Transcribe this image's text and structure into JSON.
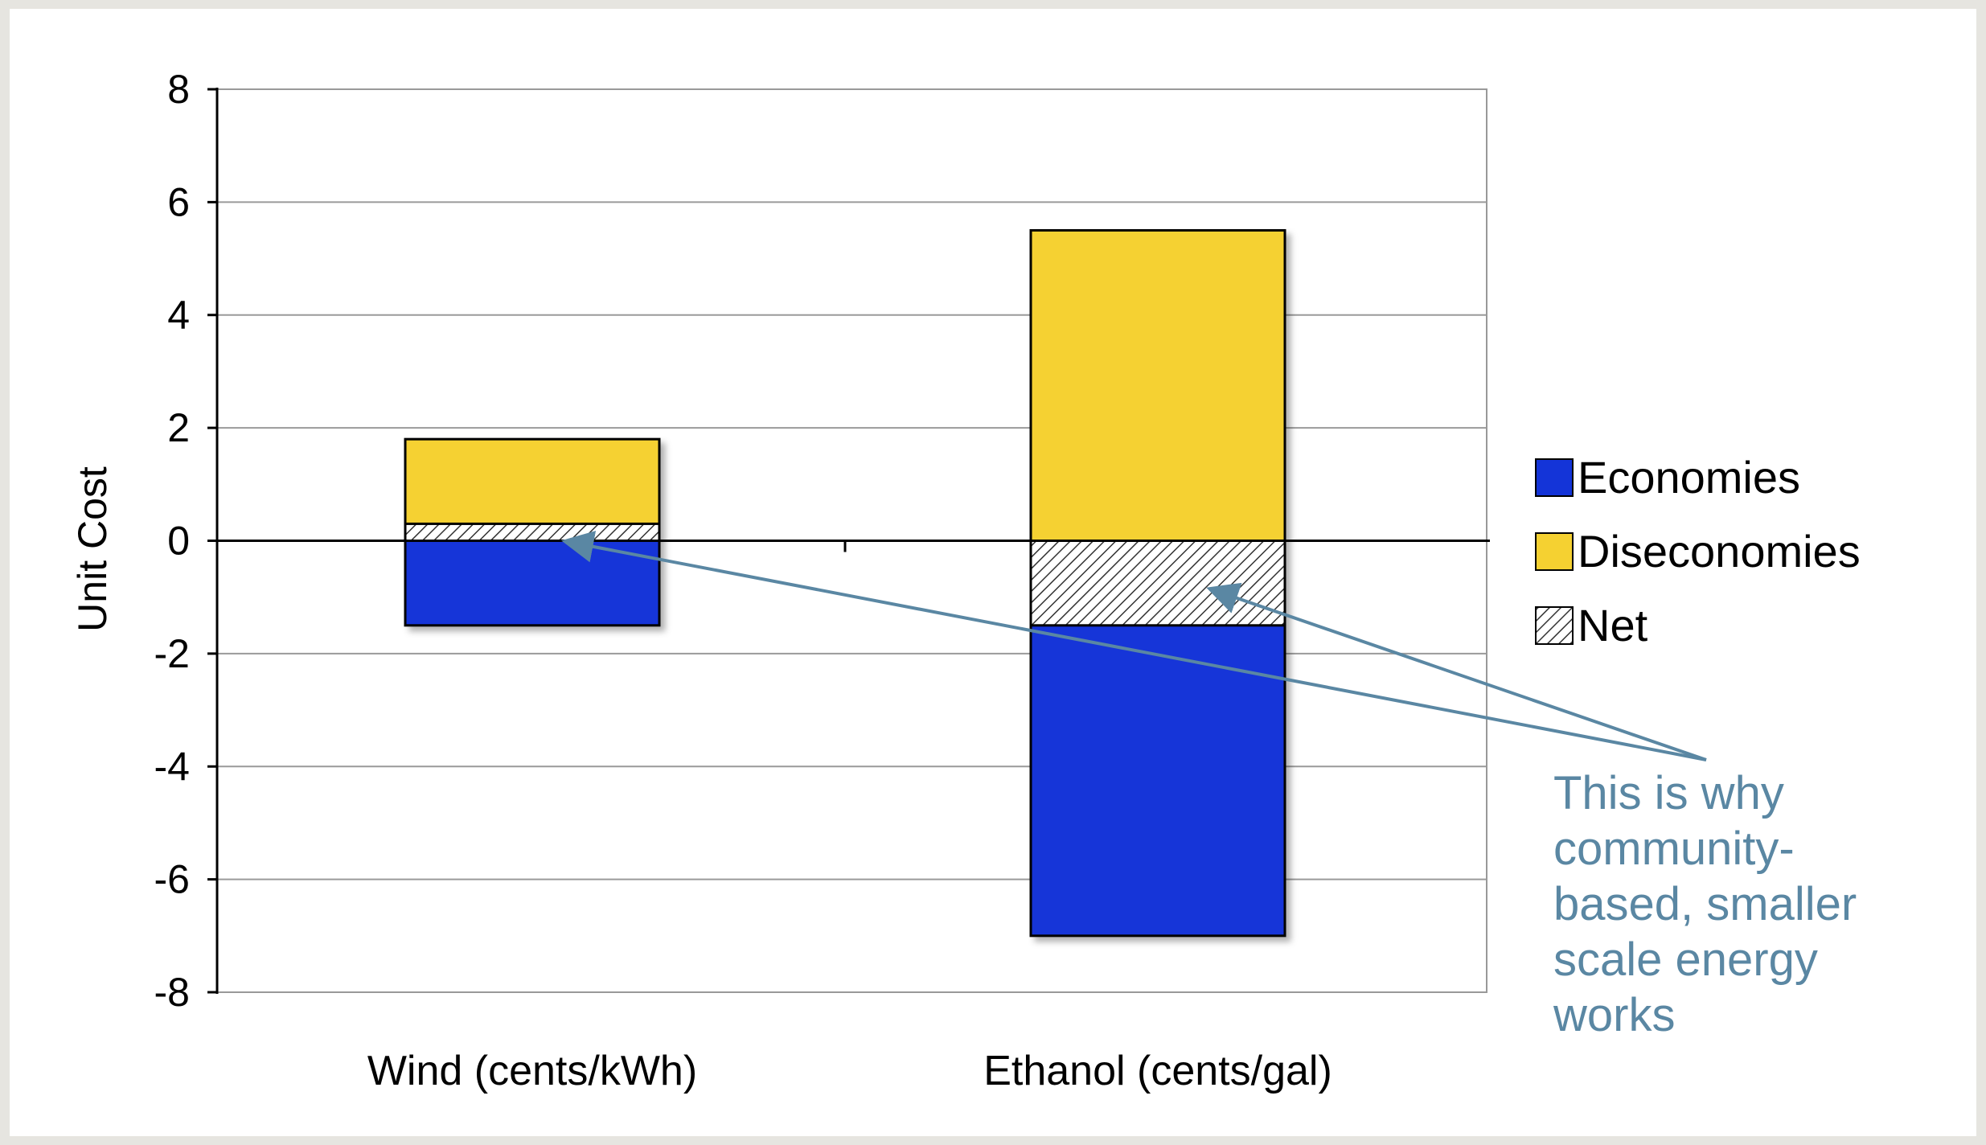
{
  "chart_data": {
    "type": "bar",
    "stacked": true,
    "categories": [
      "Wind (cents/kWh)",
      "Ethanol (cents/gal)"
    ],
    "series": [
      {
        "name": "Economies",
        "values": [
          -1.5,
          -7.0
        ],
        "color": "#1434d8",
        "pattern": "solid"
      },
      {
        "name": "Diseconomies",
        "values": [
          1.8,
          5.5
        ],
        "color": "#f5d131",
        "pattern": "solid"
      },
      {
        "name": "Net",
        "values": [
          0.3,
          -1.5
        ],
        "color": "#ffffff",
        "pattern": "hatch"
      }
    ],
    "title": "",
    "xlabel": "",
    "ylabel": "Unit Cost",
    "ylim": [
      -8,
      8
    ],
    "yticks": [
      -8,
      -6,
      -4,
      -2,
      0,
      2,
      4,
      6,
      8
    ],
    "grid": true,
    "legend_position": "right",
    "annotation": {
      "lines": [
        "This is why",
        "community-",
        "based, smaller",
        "scale energy",
        "works"
      ],
      "color": "#5a87a3",
      "arrow_targets": [
        "Wind (cents/kWh)",
        "Ethanol (cents/gal)"
      ]
    }
  }
}
